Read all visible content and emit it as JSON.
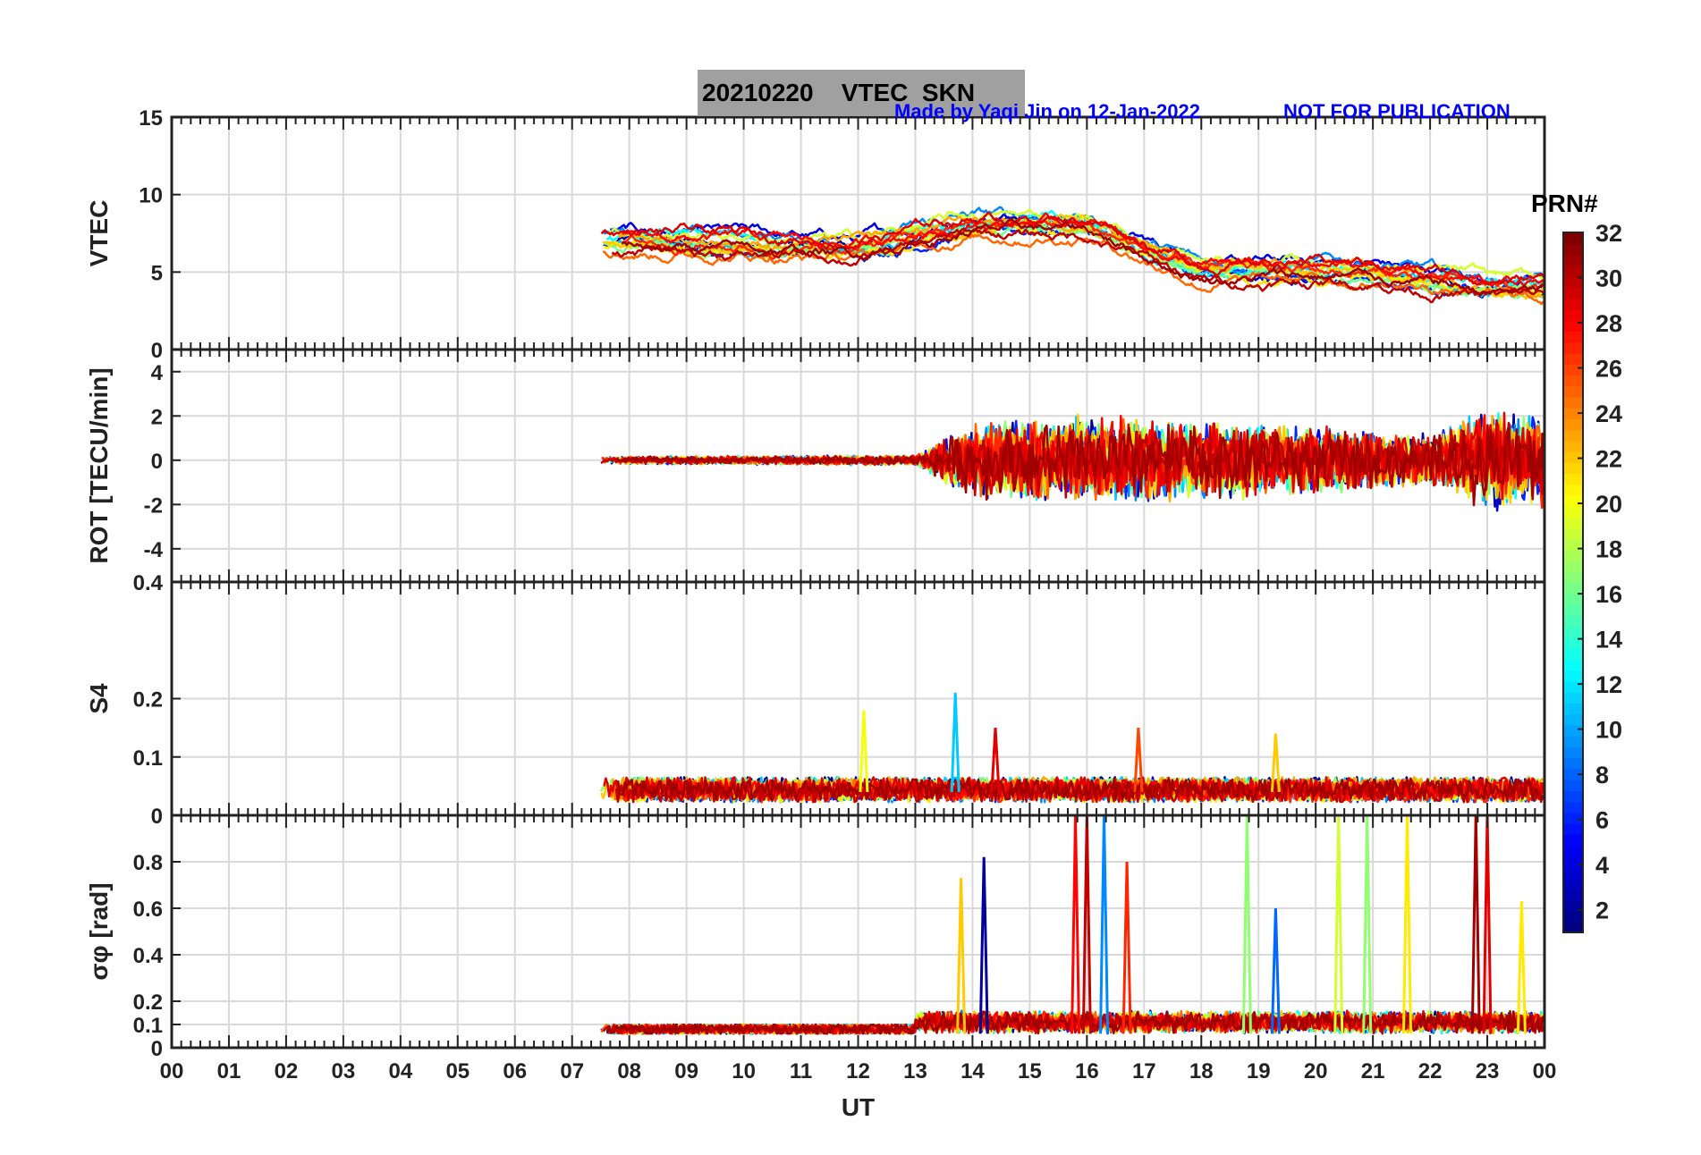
{
  "header": {
    "title": "20210220    VTEC  SKN",
    "credit": "Made by Yaqi Jin on 12-Jan-2022",
    "notice": "NOT FOR PUBLICATION"
  },
  "colorbar": {
    "label": "PRN#",
    "range": [
      1,
      32
    ],
    "ticks": [
      2,
      4,
      6,
      8,
      10,
      12,
      14,
      16,
      18,
      20,
      22,
      24,
      26,
      28,
      30,
      32
    ]
  },
  "chart_data": [
    {
      "type": "line",
      "panel": "VTEC",
      "ylabel": "VTEC",
      "ylim": [
        0,
        15
      ],
      "yticks": [
        0,
        5,
        10,
        15
      ],
      "xlim": [
        0,
        24
      ],
      "grid": true,
      "data_start_ut": 7.5,
      "series_note": "one line per PRN 1-32, colored by PRN",
      "approx_levels": [
        {
          "ut": 8,
          "vtec": 7
        },
        {
          "ut": 12,
          "vtec": 6.5
        },
        {
          "ut": 14,
          "vtec": 8
        },
        {
          "ut": 16,
          "vtec": 8
        },
        {
          "ut": 18,
          "vtec": 5
        },
        {
          "ut": 21,
          "vtec": 5
        },
        {
          "ut": 23,
          "vtec": 4
        }
      ]
    },
    {
      "type": "line",
      "panel": "ROT",
      "ylabel": "ROT [TECU/min]",
      "ylim": [
        -5.5,
        5
      ],
      "yticks": [
        -4,
        -2,
        0,
        2,
        4
      ],
      "xlim": [
        0,
        24
      ],
      "grid": true,
      "approx_amplitude": [
        {
          "ut": 8,
          "amp": 0.3
        },
        {
          "ut": 13,
          "amp": 0.4
        },
        {
          "ut": 14,
          "amp": 3
        },
        {
          "ut": 16,
          "amp": 3.5
        },
        {
          "ut": 19,
          "amp": 3
        },
        {
          "ut": 22,
          "amp": 2
        },
        {
          "ut": 23,
          "amp": 4
        }
      ]
    },
    {
      "type": "line",
      "panel": "S4",
      "ylabel": "S4",
      "ylim": [
        0,
        0.4
      ],
      "yticks": [
        0,
        0.1,
        0.2,
        0.4
      ],
      "xlim": [
        0,
        24
      ],
      "grid": true,
      "baseline": 0.04,
      "spikes": [
        {
          "ut": 12.1,
          "value": 0.18
        },
        {
          "ut": 13.7,
          "value": 0.21
        },
        {
          "ut": 14.4,
          "value": 0.15
        },
        {
          "ut": 16.9,
          "value": 0.15
        },
        {
          "ut": 19.3,
          "value": 0.14
        }
      ]
    },
    {
      "type": "line",
      "panel": "sigma_phi",
      "ylabel": "σφ [rad]",
      "ylim": [
        0,
        1
      ],
      "yticks": [
        0,
        0.1,
        0.2,
        0.4,
        0.6,
        0.8
      ],
      "xlim": [
        0,
        24
      ],
      "grid": true,
      "baseline": 0.06,
      "spikes": [
        {
          "ut": 13.8,
          "value": 0.73,
          "prn": 22
        },
        {
          "ut": 14.2,
          "value": 0.82,
          "prn": 2
        },
        {
          "ut": 15.8,
          "value": 1.0,
          "prn": 28
        },
        {
          "ut": 16.0,
          "value": 1.0,
          "prn": 30
        },
        {
          "ut": 16.3,
          "value": 1.0,
          "prn": 9
        },
        {
          "ut": 16.7,
          "value": 0.8,
          "prn": 27
        },
        {
          "ut": 18.8,
          "value": 1.0,
          "prn": 17
        },
        {
          "ut": 19.3,
          "value": 0.6,
          "prn": 8
        },
        {
          "ut": 20.4,
          "value": 1.0,
          "prn": 19
        },
        {
          "ut": 20.9,
          "value": 1.0,
          "prn": 17
        },
        {
          "ut": 21.6,
          "value": 1.0,
          "prn": 21
        },
        {
          "ut": 22.8,
          "value": 1.0,
          "prn": 31
        },
        {
          "ut": 23.0,
          "value": 1.0,
          "prn": 29
        },
        {
          "ut": 23.6,
          "value": 0.63,
          "prn": 21
        }
      ]
    }
  ],
  "xaxis": {
    "label": "UT",
    "ticklabels": [
      "00",
      "01",
      "02",
      "03",
      "04",
      "05",
      "06",
      "07",
      "08",
      "09",
      "10",
      "11",
      "12",
      "13",
      "14",
      "15",
      "16",
      "17",
      "18",
      "19",
      "20",
      "21",
      "22",
      "23",
      "00"
    ]
  }
}
